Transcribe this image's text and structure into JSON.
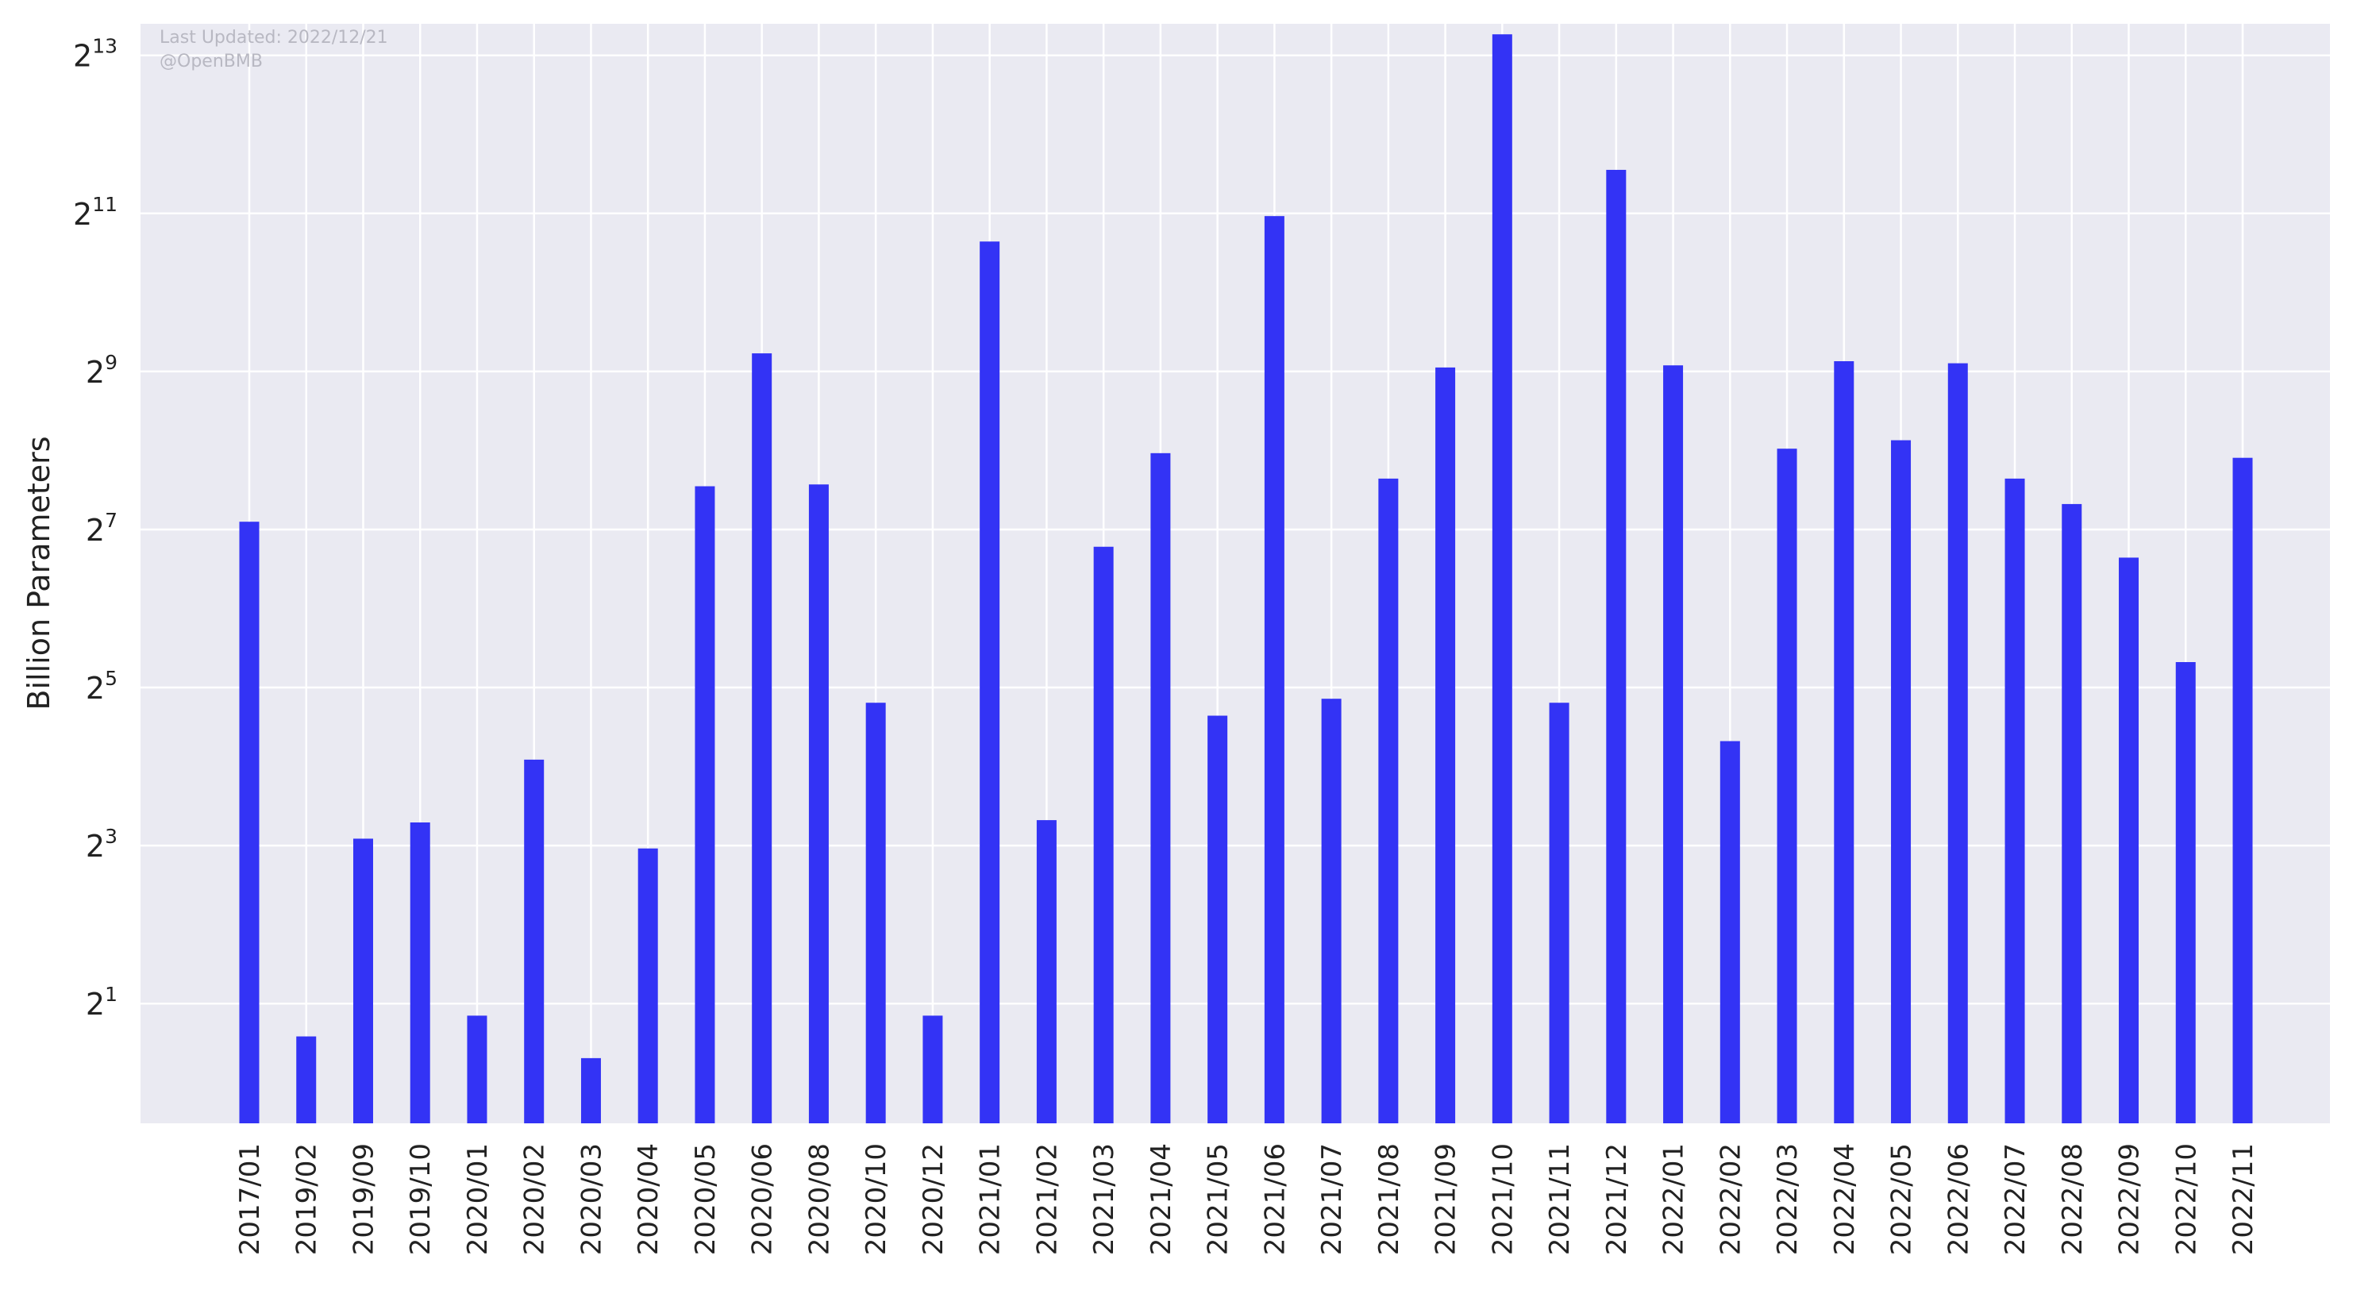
{
  "chart_data": {
    "type": "bar",
    "title": "",
    "xlabel": "",
    "ylabel": "Billion Parameters",
    "yscale": "log2",
    "ylim": [
      0.7,
      10800
    ],
    "yticks": [
      {
        "base": "2",
        "exp": "1",
        "value": 2
      },
      {
        "base": "2",
        "exp": "3",
        "value": 8
      },
      {
        "base": "2",
        "exp": "5",
        "value": 32
      },
      {
        "base": "2",
        "exp": "7",
        "value": 128
      },
      {
        "base": "2",
        "exp": "9",
        "value": 512
      },
      {
        "base": "2",
        "exp": "11",
        "value": 2048
      },
      {
        "base": "2",
        "exp": "13",
        "value": 8192
      }
    ],
    "grid": true,
    "legend": "none",
    "bar_color": "#3333f5",
    "categories": [
      "2017/01",
      "2019/02",
      "2019/09",
      "2019/10",
      "2020/01",
      "2020/02",
      "2020/03",
      "2020/04",
      "2020/05",
      "2020/06",
      "2020/08",
      "2020/10",
      "2020/12",
      "2021/01",
      "2021/02",
      "2021/03",
      "2021/04",
      "2021/05",
      "2021/06",
      "2021/07",
      "2021/08",
      "2021/09",
      "2021/10",
      "2021/11",
      "2021/12",
      "2022/01",
      "2022/02",
      "2022/03",
      "2022/04",
      "2022/05",
      "2022/06",
      "2022/07",
      "2022/08",
      "2022/09",
      "2022/10",
      "2022/11"
    ],
    "values": [
      137,
      1.5,
      8.5,
      9.8,
      1.8,
      17,
      1.24,
      7.8,
      187,
      600,
      190,
      28,
      1.8,
      1600,
      10,
      110,
      250,
      25,
      2000,
      29,
      200,
      530,
      9850,
      28,
      3000,
      540,
      20,
      260,
      560,
      280,
      550,
      200,
      160,
      100,
      40,
      240
    ],
    "annotations": [
      "Last Updated: 2022/12/21",
      "@OpenBMB"
    ]
  }
}
